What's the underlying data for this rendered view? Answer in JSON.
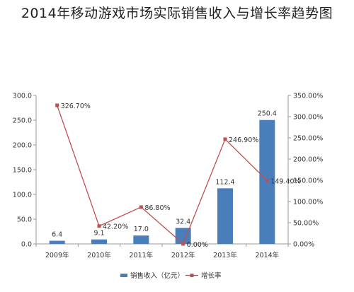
{
  "chart_data": {
    "type": "bar+line",
    "title": "2014年移动游戏市场实际销售收入与增长率趋势图",
    "categories": [
      "2009年",
      "2010年",
      "2011年",
      "2012年",
      "2013年",
      "2014年"
    ],
    "series": [
      {
        "name": "销售收入（亿元）",
        "type": "bar",
        "axis": "left",
        "values": [
          6.4,
          9.1,
          17.0,
          32.4,
          112.4,
          250.4
        ],
        "labels": [
          "6.4",
          "9.1",
          "17.0",
          "32.4",
          "112.4",
          "250.4"
        ]
      },
      {
        "name": "增长率",
        "type": "line",
        "axis": "right",
        "values": [
          326.7,
          42.2,
          86.8,
          0.0,
          246.9,
          149.4
        ],
        "labels": [
          "326.70%",
          "42.20%",
          "86.80%",
          "0.00%",
          "246.90%",
          "149.40%"
        ]
      }
    ],
    "y_left": {
      "ylim": [
        0,
        300
      ],
      "ticks": [
        "0.0",
        "50.0",
        "100.0",
        "150.0",
        "200.0",
        "250.0",
        "300.0"
      ],
      "tick_values": [
        0,
        50,
        100,
        150,
        200,
        250,
        300
      ]
    },
    "y_right": {
      "ylim": [
        0,
        350
      ],
      "ticks": [
        "0.00%",
        "50.00%",
        "100.00%",
        "150.00%",
        "200.00%",
        "250.00%",
        "300.00%",
        "350.00%"
      ],
      "tick_values": [
        0,
        50,
        100,
        150,
        200,
        250,
        300,
        350
      ]
    },
    "legend_position": "bottom",
    "grid": false,
    "colors": {
      "bar": "#4a7ebb",
      "line": "#c0504d",
      "marker": "#c0504d"
    }
  }
}
